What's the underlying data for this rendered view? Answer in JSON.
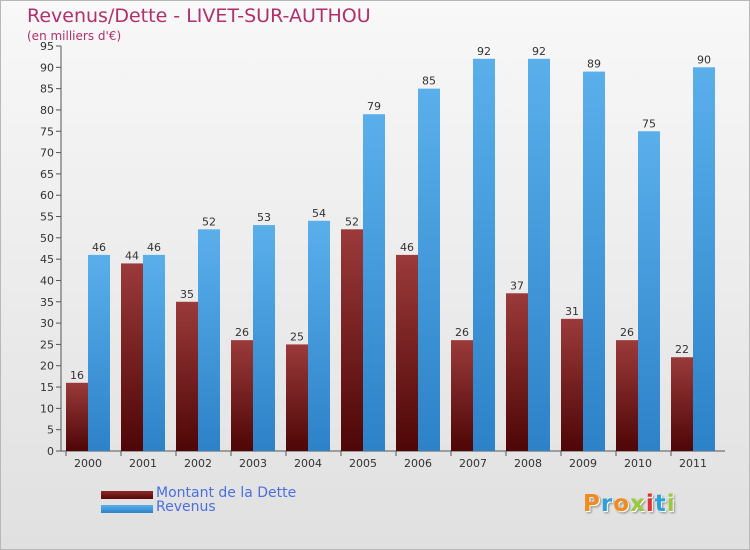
{
  "title": "Revenus/Dette - LIVET-SUR-AUTHOU",
  "subtitle": "(en milliers d'€)",
  "logo_text": "Proxiti",
  "logo_colors": [
    "#f08c1e",
    "#2aa2d8",
    "#f08c1e",
    "#9bc83c",
    "#e03030",
    "#2aa2d8",
    "#9bc83c"
  ],
  "colors": {
    "title": "#b0306a",
    "debt": "#6a0f10",
    "revenue": "#4aa3e8",
    "legend_text": "#4a6fe0"
  },
  "chart_data": {
    "type": "bar",
    "title": "Revenus/Dette - LIVET-SUR-AUTHOU",
    "ylabel": "(en milliers d'€)",
    "categories": [
      "2000",
      "2001",
      "2002",
      "2003",
      "2004",
      "2005",
      "2006",
      "2007",
      "2008",
      "2009",
      "2010",
      "2011"
    ],
    "series": [
      {
        "name": "Montant de la Dette",
        "color": "#6a0f10",
        "values": [
          16,
          44,
          35,
          26,
          25,
          52,
          46,
          26,
          37,
          31,
          26,
          22
        ]
      },
      {
        "name": "Revenus",
        "color": "#4aa3e8",
        "values": [
          46,
          46,
          52,
          53,
          54,
          79,
          85,
          92,
          92,
          89,
          75,
          90
        ]
      }
    ],
    "ylim": [
      0,
      95
    ],
    "yticks": [
      0,
      5,
      10,
      15,
      20,
      25,
      30,
      35,
      40,
      45,
      50,
      55,
      60,
      65,
      70,
      75,
      80,
      85,
      90,
      95
    ],
    "grid": false,
    "legend": "bottom-left"
  }
}
